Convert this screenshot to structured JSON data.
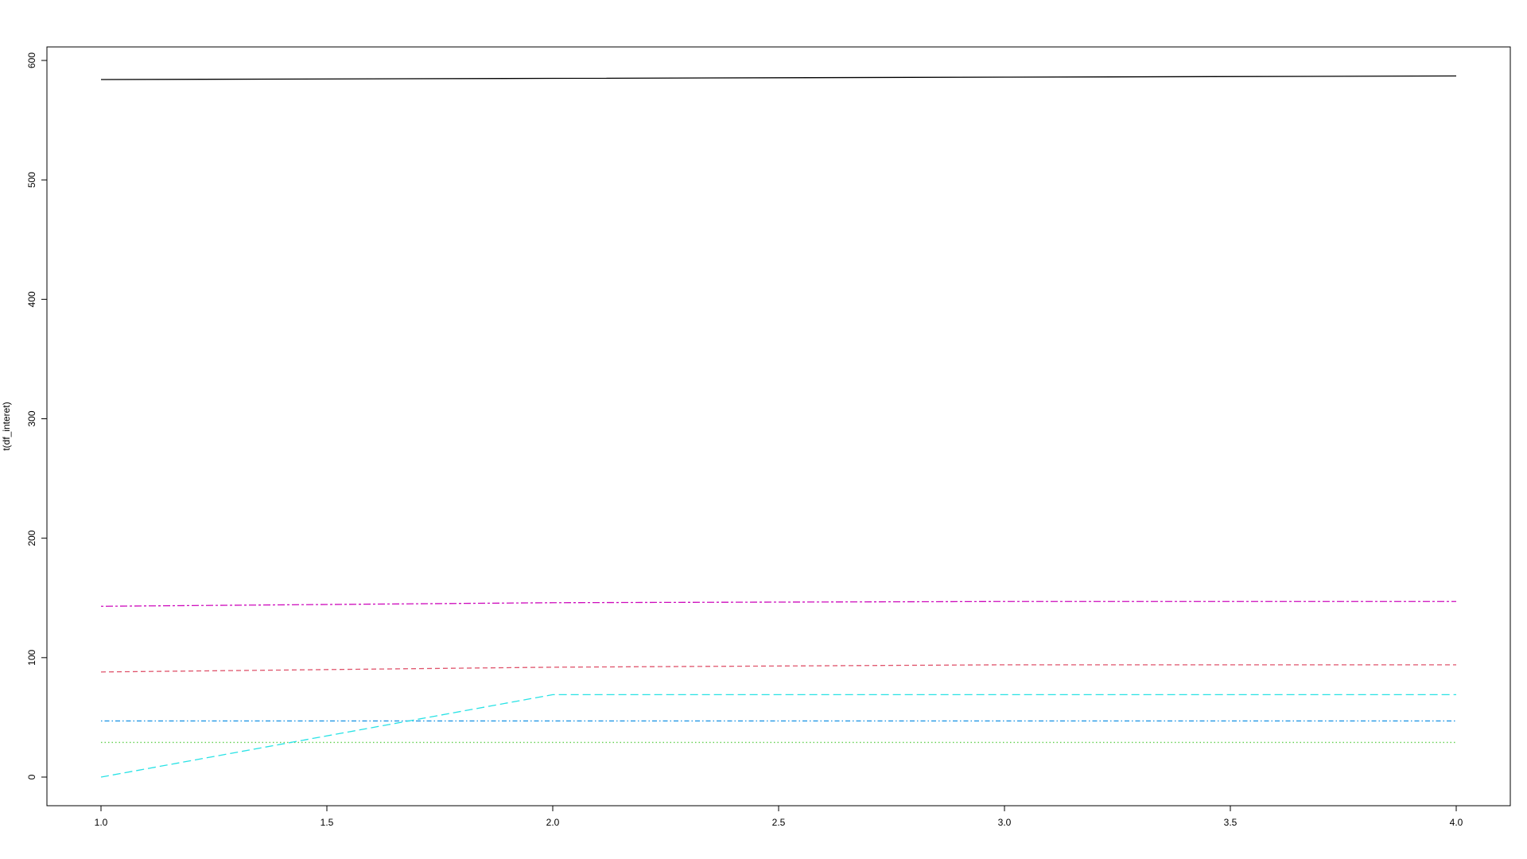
{
  "chart_data": {
    "type": "line",
    "title": "",
    "xlabel": "",
    "ylabel": "t(df_interet)",
    "xlim": [
      1.0,
      4.0
    ],
    "ylim": [
      0,
      600
    ],
    "x_ticks": [
      "1.0",
      "1.5",
      "2.0",
      "2.5",
      "3.0",
      "3.5",
      "4.0"
    ],
    "y_ticks": [
      "0",
      "100",
      "200",
      "300",
      "400",
      "500",
      "600"
    ],
    "grid": false,
    "legend": "none",
    "x": [
      1,
      2,
      3,
      4
    ],
    "series": [
      {
        "values": [
          584,
          585,
          586,
          587
        ],
        "color": "#000000",
        "dash": "solid"
      },
      {
        "values": [
          88,
          92,
          94,
          94
        ],
        "color": "#DF536B",
        "dash": "dashed"
      },
      {
        "values": [
          29,
          29,
          29,
          29
        ],
        "color": "#61D04F",
        "dash": "dotted"
      },
      {
        "values": [
          47,
          47,
          47,
          47
        ],
        "color": "#2297E6",
        "dash": "dotdash"
      },
      {
        "values": [
          0,
          69,
          69,
          69
        ],
        "color": "#28E2E5",
        "dash": "longdash"
      },
      {
        "values": [
          143,
          146,
          147,
          147
        ],
        "color": "#CD0BBC",
        "dash": "twodash"
      }
    ]
  }
}
